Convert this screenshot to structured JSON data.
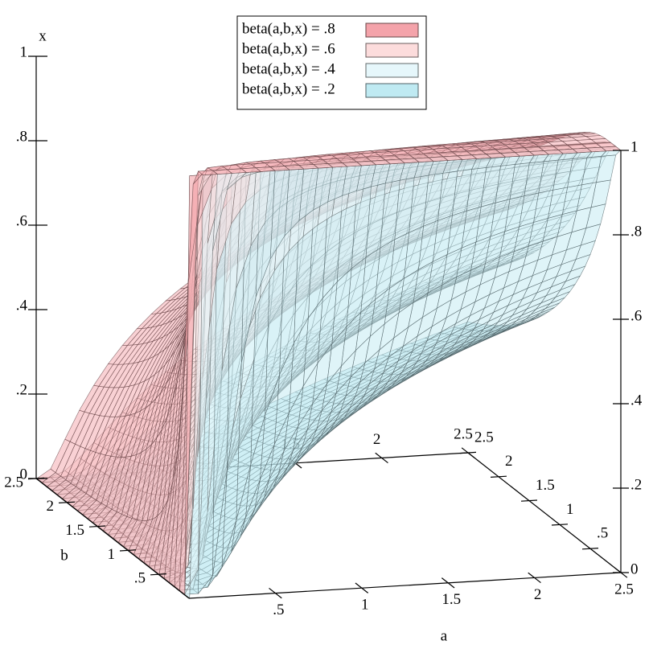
{
  "chart_data": {
    "type": "surface3d",
    "x_axis_label": "a",
    "y_axis_label": "b",
    "z_axis_label": "x",
    "series": [
      {
        "name": "beta(a,b,x) = .8",
        "level": 0.8,
        "color": "#f4a3aa"
      },
      {
        "name": "beta(a,b,x) = .6",
        "level": 0.6,
        "color": "#fcdcdc"
      },
      {
        "name": "beta(a,b,x) = .4",
        "level": 0.4,
        "color": "#e6f7fb"
      },
      {
        "name": "beta(a,b,x) = .2",
        "level": 0.2,
        "color": "#bfeaf2"
      }
    ],
    "xlim": [
      0,
      2.5
    ],
    "xticks": [
      {
        "value": 0.5,
        "label": ".5"
      },
      1,
      1.5,
      2,
      2.5
    ],
    "ylim": [
      0,
      2.5
    ],
    "yticks": [
      {
        "value": 0.5,
        "label": ".5"
      },
      1,
      1.5,
      2,
      2.5
    ],
    "zlim": [
      0,
      1
    ],
    "zticks": [
      0,
      {
        "value": 0.2,
        "label": ".2"
      },
      {
        "value": 0.4,
        "label": ".4"
      },
      {
        "value": 0.6,
        "label": ".6"
      },
      {
        "value": 0.8,
        "label": ".8"
      },
      1
    ],
    "legend": "top"
  }
}
